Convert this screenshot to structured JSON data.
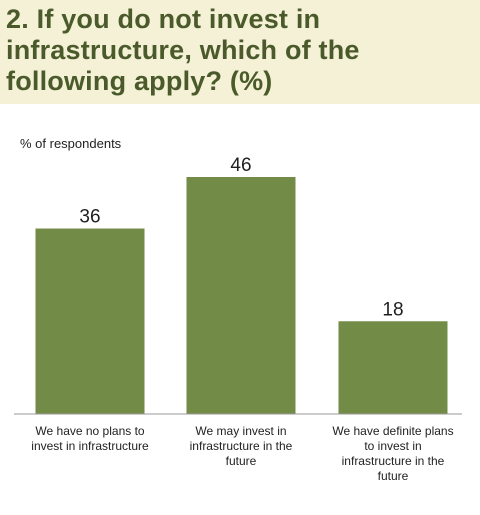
{
  "chart_data": {
    "type": "bar",
    "title": "2. If you do not invest in infrastructure, which of the following apply? (%)",
    "ylabel": "% of respondents",
    "xlabel": "",
    "categories": [
      "We have no plans to invest in infrastructure",
      "We may invest in infrastructure in the future",
      "We have definite plans to invest in infrastructure in the future"
    ],
    "values": [
      36,
      46,
      18
    ],
    "data_labels": [
      "36",
      "46",
      "18"
    ],
    "ylim": [
      0,
      54
    ],
    "grid": false,
    "bar_color": "#728b46"
  },
  "colors": {
    "background": "#f4f1d6",
    "panel": "#ffffff",
    "title": "#4a5a2a",
    "bar": "#728b46"
  }
}
